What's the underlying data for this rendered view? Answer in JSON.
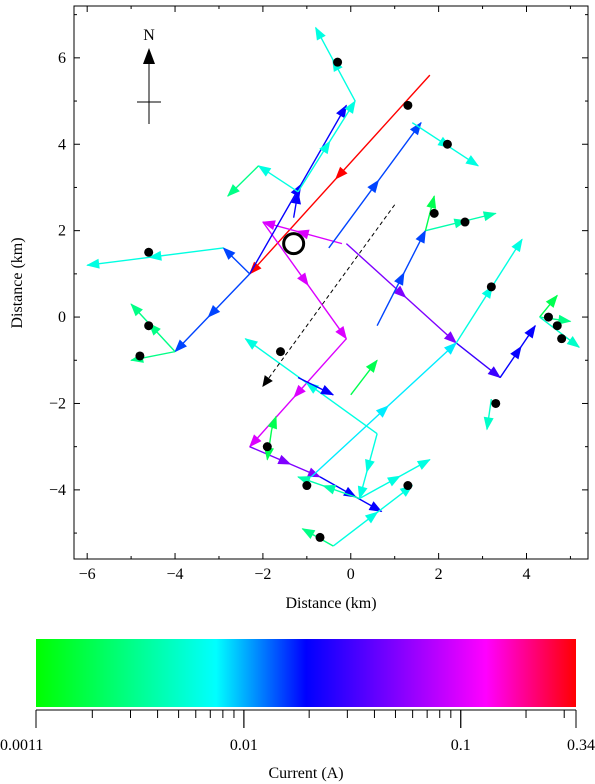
{
  "chart_data": {
    "type": "vector-network",
    "xlabel": "Distance (km)",
    "ylabel": "Distance (km)",
    "xlim": [
      -6.3,
      5.4
    ],
    "ylim": [
      -5.6,
      7.2
    ],
    "xticks": [
      -6,
      -4,
      -2,
      0,
      2,
      4
    ],
    "yticks": [
      -4,
      -2,
      0,
      2,
      4,
      6
    ],
    "xtick_labels": [
      "−6",
      "−4",
      "−2",
      "0",
      "2",
      "4"
    ],
    "ytick_labels": [
      "−4",
      "−2",
      "0",
      "2",
      "4",
      "6"
    ],
    "north_label": "N",
    "marker": {
      "x": -1.3,
      "y": 1.7
    },
    "dashed_arrow": {
      "x1": 1.0,
      "y1": 2.6,
      "x2": -2.0,
      "y2": -1.6
    },
    "segments": [
      {
        "x1": 1.8,
        "y1": 5.6,
        "x2": -2.3,
        "y2": 1.0,
        "current": 0.34
      },
      {
        "x1": -0.2,
        "y1": 1.7,
        "x2": -2.0,
        "y2": 2.2,
        "current": 0.1
      },
      {
        "x1": -2.0,
        "y1": 2.2,
        "x2": -0.1,
        "y2": -0.5,
        "current": 0.1
      },
      {
        "x1": -0.1,
        "y1": -0.5,
        "x2": -2.3,
        "y2": -3.0,
        "current": 0.1
      },
      {
        "x1": -2.3,
        "y1": -3.0,
        "x2": -0.7,
        "y2": -3.7,
        "current": 0.05
      },
      {
        "x1": -0.7,
        "y1": -3.7,
        "x2": 0.7,
        "y2": -4.5,
        "current": 0.02
      },
      {
        "x1": -0.1,
        "y1": 1.7,
        "x2": 2.4,
        "y2": -0.6,
        "current": 0.05
      },
      {
        "x1": 2.4,
        "y1": -0.6,
        "x2": 3.4,
        "y2": -1.4,
        "current": 0.03
      },
      {
        "x1": 3.4,
        "y1": -1.4,
        "x2": 4.2,
        "y2": -0.2,
        "current": 0.02
      },
      {
        "x1": -2.3,
        "y1": 1.0,
        "x2": -0.1,
        "y2": 4.9,
        "current": 0.02
      },
      {
        "x1": -2.3,
        "y1": 1.0,
        "x2": -4.0,
        "y2": -0.8,
        "current": 0.015
      },
      {
        "x1": -0.5,
        "y1": 1.6,
        "x2": 1.6,
        "y2": 4.5,
        "current": 0.015
      },
      {
        "x1": -0.9,
        "y1": -3.7,
        "x2": 2.4,
        "y2": -0.6,
        "current": 0.008
      },
      {
        "x1": -2.3,
        "y1": 1.0,
        "x2": -2.9,
        "y2": 1.6,
        "current": 0.015
      },
      {
        "x1": -2.9,
        "y1": 1.6,
        "x2": -6.0,
        "y2": 1.2,
        "current": 0.006
      },
      {
        "x1": -4.0,
        "y1": -0.8,
        "x2": -5.0,
        "y2": -1.0,
        "current": 0.003
      },
      {
        "x1": -4.0,
        "y1": -0.8,
        "x2": -5.0,
        "y2": 0.3,
        "current": 0.003
      },
      {
        "x1": -1.3,
        "y1": 2.3,
        "x2": -1.2,
        "y2": 2.9,
        "current": 0.02
      },
      {
        "x1": -1.2,
        "y1": 2.9,
        "x2": -2.1,
        "y2": 3.5,
        "current": 0.006
      },
      {
        "x1": -2.1,
        "y1": 3.5,
        "x2": -2.8,
        "y2": 2.8,
        "current": 0.003
      },
      {
        "x1": -1.2,
        "y1": 2.9,
        "x2": 0.1,
        "y2": 5.0,
        "current": 0.006
      },
      {
        "x1": 0.1,
        "y1": 5.0,
        "x2": -0.8,
        "y2": 6.7,
        "current": 0.006
      },
      {
        "x1": 1.4,
        "y1": 4.5,
        "x2": 2.9,
        "y2": 3.5,
        "current": 0.006
      },
      {
        "x1": 0.6,
        "y1": -0.2,
        "x2": 1.7,
        "y2": 2.0,
        "current": 0.015
      },
      {
        "x1": 1.7,
        "y1": 2.0,
        "x2": 3.3,
        "y2": 2.4,
        "current": 0.004
      },
      {
        "x1": 1.7,
        "y1": 2.0,
        "x2": 1.9,
        "y2": 2.8,
        "current": 0.002
      },
      {
        "x1": 2.4,
        "y1": -0.6,
        "x2": 3.9,
        "y2": 1.8,
        "current": 0.006
      },
      {
        "x1": 0.0,
        "y1": -1.8,
        "x2": 0.6,
        "y2": -1.0,
        "current": 0.002
      },
      {
        "x1": 0.6,
        "y1": -2.7,
        "x2": -2.4,
        "y2": -0.5,
        "current": 0.006
      },
      {
        "x1": -1.2,
        "y1": -1.4,
        "x2": -0.4,
        "y2": -1.8,
        "current": 0.02
      },
      {
        "x1": 0.6,
        "y1": -2.7,
        "x2": 0.2,
        "y2": -4.2,
        "current": 0.006
      },
      {
        "x1": 0.2,
        "y1": -4.2,
        "x2": -1.2,
        "y2": -3.7,
        "current": 0.004
      },
      {
        "x1": 0.2,
        "y1": -4.2,
        "x2": 1.8,
        "y2": -3.3,
        "current": 0.006
      },
      {
        "x1": -0.4,
        "y1": -5.3,
        "x2": 1.4,
        "y2": -3.9,
        "current": 0.006
      },
      {
        "x1": -0.4,
        "y1": -5.3,
        "x2": -1.1,
        "y2": -4.9,
        "current": 0.003
      },
      {
        "x1": 3.2,
        "y1": -1.9,
        "x2": 3.1,
        "y2": -2.6,
        "current": 0.005
      },
      {
        "x1": 4.3,
        "y1": 0.0,
        "x2": 4.7,
        "y2": 0.5,
        "current": 0.002
      },
      {
        "x1": 4.3,
        "y1": 0.0,
        "x2": 5.0,
        "y2": -0.1,
        "current": 0.003
      },
      {
        "x1": 4.3,
        "y1": 0.0,
        "x2": 5.2,
        "y2": -0.7,
        "current": 0.005
      },
      {
        "x1": -1.8,
        "y1": -2.6,
        "x2": -1.7,
        "y2": -2.3,
        "current": 0.002
      },
      {
        "x1": -1.8,
        "y1": -2.6,
        "x2": -1.9,
        "y2": -3.3,
        "current": 0.002
      }
    ],
    "dots": [
      {
        "x": -0.3,
        "y": 5.9
      },
      {
        "x": 1.3,
        "y": 4.9
      },
      {
        "x": 2.2,
        "y": 4.0
      },
      {
        "x": 1.9,
        "y": 2.4
      },
      {
        "x": 2.6,
        "y": 2.2
      },
      {
        "x": -4.6,
        "y": 1.5
      },
      {
        "x": -4.6,
        "y": -0.2
      },
      {
        "x": -4.8,
        "y": -0.9
      },
      {
        "x": -1.6,
        "y": -0.8
      },
      {
        "x": 3.2,
        "y": 0.7
      },
      {
        "x": 4.5,
        "y": 0.0
      },
      {
        "x": 4.7,
        "y": -0.2
      },
      {
        "x": 4.8,
        "y": -0.5
      },
      {
        "x": 3.3,
        "y": -2.0
      },
      {
        "x": -1.9,
        "y": -3.0
      },
      {
        "x": -1.0,
        "y": -3.9
      },
      {
        "x": 1.3,
        "y": -3.9
      },
      {
        "x": -0.7,
        "y": -5.1
      }
    ],
    "colorbar": {
      "label": "Current (A)",
      "min": 0.0011,
      "max": 0.34,
      "scale": "log",
      "tick_values": [
        0.0011,
        0.01,
        0.1,
        0.34
      ],
      "tick_labels": [
        "0.0011",
        "0.01",
        "0.1",
        "0.34"
      ],
      "colors": [
        "#00ff00",
        "#00ff80",
        "#00ffff",
        "#0000ff",
        "#8000ff",
        "#ff00ff",
        "#ff0000"
      ]
    }
  }
}
